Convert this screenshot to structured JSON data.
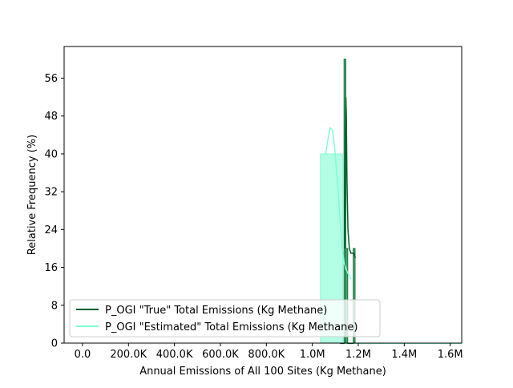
{
  "chart_data": {
    "type": "bar",
    "title": "",
    "xlabel": "Annual Emissions of All 100 Sites (Kg Methane)",
    "ylabel": "Relative Frequency (%)",
    "xlim": [
      -80000,
      1650000
    ],
    "ylim": [
      0,
      62.7
    ],
    "x_ticks": [
      0,
      200000,
      400000,
      600000,
      800000,
      1000000,
      1200000,
      1400000,
      1600000
    ],
    "x_tick_labels": [
      "0.0",
      "200.0K",
      "400.0K",
      "600.0K",
      "800.0K",
      "1.0M",
      "1.2M",
      "1.4M",
      "1.6M"
    ],
    "y_ticks": [
      0,
      8,
      16,
      24,
      32,
      40,
      48,
      56
    ],
    "y_tick_labels": [
      "0",
      "8",
      "16",
      "24",
      "32",
      "40",
      "48",
      "56"
    ],
    "grid": false,
    "legend_placement": "lower-left",
    "series": [
      {
        "name": "P_OGI \"True\" Total Emissions (Kg Methane)",
        "color": "#00602b",
        "fill": "#3fa56b",
        "bins": [
          {
            "x0": 1122000,
            "x1": 1130000,
            "value": 0
          },
          {
            "x0": 1130000,
            "x1": 1138000,
            "value": 0
          },
          {
            "x0": 1138000,
            "x1": 1146000,
            "value": 60
          },
          {
            "x0": 1146000,
            "x1": 1154000,
            "value": 20
          },
          {
            "x0": 1154000,
            "x1": 1162000,
            "value": 0
          },
          {
            "x0": 1162000,
            "x1": 1170000,
            "value": 0
          },
          {
            "x0": 1170000,
            "x1": 1178000,
            "value": 0
          },
          {
            "x0": 1178000,
            "x1": 1186000,
            "value": 20
          }
        ],
        "kde": [
          [
            1140000,
            20
          ],
          [
            1144000,
            44
          ],
          [
            1146000,
            52
          ],
          [
            1148000,
            48
          ],
          [
            1151000,
            34
          ],
          [
            1155000,
            24
          ],
          [
            1161000,
            20
          ],
          [
            1168000,
            19
          ],
          [
            1175000,
            19
          ],
          [
            1181000,
            19
          ],
          [
            1187000,
            18
          ]
        ]
      },
      {
        "name": "P_OGI \"Estimated\" Total Emissions (Kg Methane)",
        "color": "#7fffd4",
        "fill": "#7fffd4",
        "bins": [
          {
            "x0": 1035000,
            "x1": 1132000,
            "value": 40
          },
          {
            "x0": 1132000,
            "x1": 1229000,
            "value": 0
          },
          {
            "x0": 1229000,
            "x1": 1326000,
            "value": 0
          },
          {
            "x0": 1326000,
            "x1": 1423000,
            "value": 0
          },
          {
            "x0": 1423000,
            "x1": 1520000,
            "value": 0
          },
          {
            "x0": 1520000,
            "x1": 1617000,
            "value": 0
          },
          {
            "x0": 1617000,
            "x1": 1714000,
            "value": 0
          },
          {
            "x0": 1714000,
            "x1": 1811000,
            "value": 0
          }
        ],
        "kde": [
          [
            1058000,
            40
          ],
          [
            1068000,
            43
          ],
          [
            1078000,
            45.5
          ],
          [
            1088000,
            45
          ],
          [
            1098000,
            41
          ],
          [
            1108000,
            35
          ],
          [
            1118000,
            28
          ],
          [
            1128000,
            21
          ],
          [
            1138000,
            17
          ],
          [
            1148000,
            15.5
          ],
          [
            1158000,
            14.5
          ],
          [
            1168000,
            13.5
          ]
        ]
      }
    ]
  }
}
